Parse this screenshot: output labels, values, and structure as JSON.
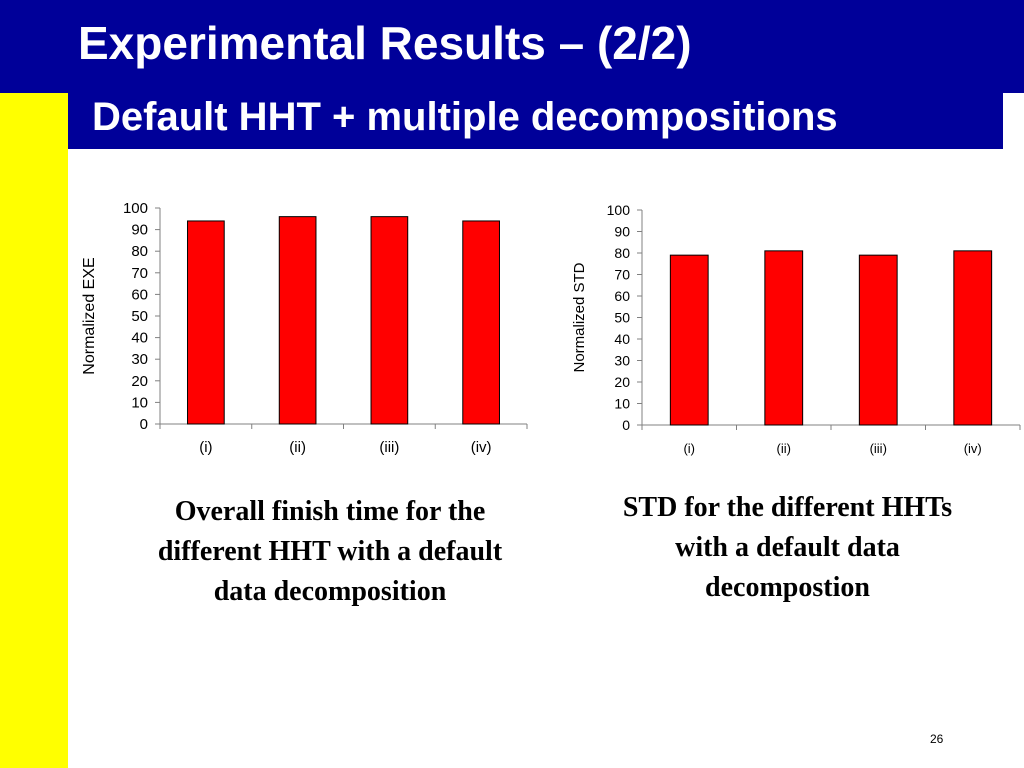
{
  "slide": {
    "title": "Experimental Results – (2/2)",
    "subtitle": "Default HHT + multiple decompositions",
    "page_number": "26"
  },
  "colors": {
    "band": "#000099",
    "stripe": "#ffff00",
    "bar": "#ff0000",
    "bar_outline": "#000000"
  },
  "captions": {
    "left": "Overall finish time for the\ndifferent HHT with a default\ndata decomposition",
    "right": "STD for the different HHTs\nwith a default data\ndecompostion"
  },
  "chart_data": [
    {
      "type": "bar",
      "title": "",
      "xlabel": "",
      "ylabel": "Normalized EXE",
      "categories": [
        "(i)",
        "(ii)",
        "(iii)",
        "(iv)"
      ],
      "values": [
        94,
        96,
        96,
        94
      ],
      "ylim": [
        0,
        100
      ],
      "yticks": [
        0,
        10,
        20,
        30,
        40,
        50,
        60,
        70,
        80,
        90,
        100
      ],
      "grid": false,
      "legend": "none"
    },
    {
      "type": "bar",
      "title": "",
      "xlabel": "",
      "ylabel": "Normalized STD",
      "categories": [
        "(i)",
        "(ii)",
        "(iii)",
        "(iv)"
      ],
      "values": [
        79,
        81,
        79,
        81
      ],
      "ylim": [
        0,
        100
      ],
      "yticks": [
        0,
        10,
        20,
        30,
        40,
        50,
        60,
        70,
        80,
        90,
        100
      ],
      "grid": false,
      "legend": "none"
    }
  ]
}
